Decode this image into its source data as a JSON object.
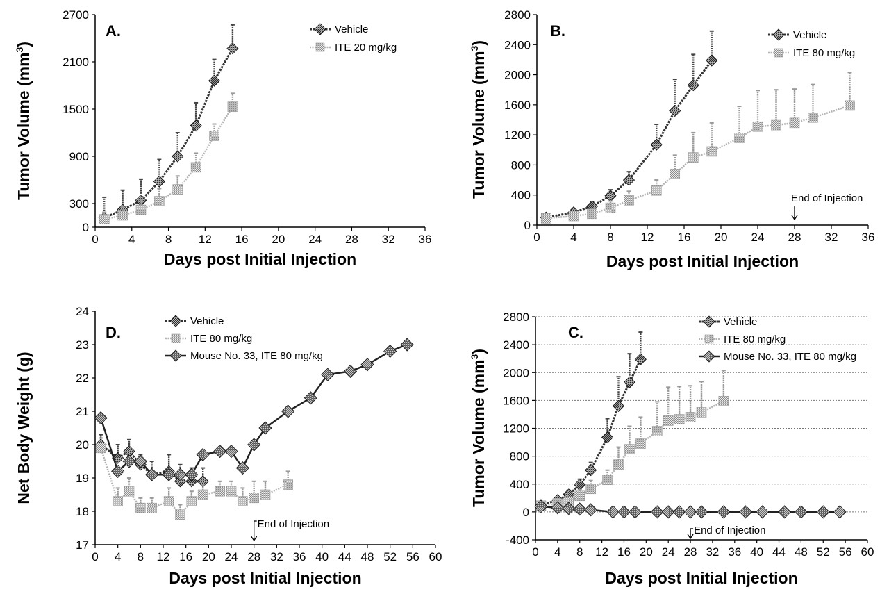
{
  "colors": {
    "vehicle": "#333333",
    "ite": "#b4b4b4",
    "mouse33": "#222222",
    "grid": "#777777"
  },
  "chart_data": [
    {
      "panel": "A.",
      "type": "line",
      "xlabel": "Days post Initial Injection",
      "ylabel": "Tumor Volume (mm",
      "ylabel_sup": "3",
      "ylabel_close": ")",
      "xlim": [
        0,
        36
      ],
      "ylim": [
        0,
        2700
      ],
      "xticks": [
        0,
        4,
        8,
        12,
        16,
        20,
        24,
        28,
        32,
        36
      ],
      "yticks": [
        0,
        300,
        900,
        1500,
        2100,
        2700
      ],
      "legend_position": "top-right",
      "grid": false,
      "series": [
        {
          "name": "Vehicle",
          "style": "vehicle",
          "x": [
            1,
            3,
            5,
            7,
            9,
            11,
            13,
            15
          ],
          "y": [
            120,
            220,
            340,
            580,
            900,
            1290,
            1860,
            2270
          ],
          "err": [
            260,
            250,
            270,
            280,
            300,
            290,
            270,
            300
          ]
        },
        {
          "name": "ITE 20 mg/kg",
          "style": "ite",
          "x": [
            1,
            3,
            5,
            7,
            9,
            11,
            13,
            15
          ],
          "y": [
            100,
            150,
            220,
            330,
            480,
            760,
            1160,
            1530
          ],
          "err": [
            90,
            110,
            130,
            160,
            170,
            180,
            150,
            170
          ]
        }
      ],
      "annotations": []
    },
    {
      "panel": "B.",
      "type": "line",
      "xlabel": "Days post Initial Injection",
      "ylabel": "Tumor Volume (mm",
      "ylabel_sup": "3",
      "ylabel_close": ")",
      "xlim": [
        0,
        36
      ],
      "ylim": [
        0,
        2800
      ],
      "xticks": [
        0,
        4,
        8,
        12,
        16,
        20,
        24,
        28,
        32,
        36
      ],
      "yticks": [
        0,
        400,
        800,
        1200,
        1600,
        2000,
        2400,
        2800
      ],
      "legend_position": "top-right",
      "grid": false,
      "series": [
        {
          "name": "Vehicle",
          "style": "vehicle",
          "x": [
            1,
            4,
            6,
            8,
            10,
            13,
            15,
            17,
            19
          ],
          "y": [
            100,
            170,
            250,
            390,
            600,
            1070,
            1520,
            1860,
            2190
          ],
          "err": [
            40,
            40,
            60,
            80,
            110,
            270,
            420,
            410,
            390
          ]
        },
        {
          "name": "ITE 80 mg/kg",
          "style": "ite",
          "x": [
            1,
            4,
            6,
            8,
            10,
            13,
            15,
            17,
            19,
            22,
            24,
            26,
            28,
            30,
            34
          ],
          "y": [
            90,
            120,
            150,
            230,
            330,
            460,
            680,
            900,
            980,
            1160,
            1310,
            1330,
            1360,
            1430,
            1590
          ],
          "err": [
            40,
            40,
            60,
            90,
            120,
            140,
            250,
            330,
            380,
            420,
            480,
            470,
            450,
            440,
            440
          ]
        }
      ],
      "annotations": [
        {
          "text": "End of Injection",
          "x": 28
        }
      ]
    },
    {
      "panel": "D.",
      "type": "line",
      "xlabel": "Days post Initial Injection",
      "ylabel": "Net Body Weight (g)",
      "xlim": [
        0,
        60
      ],
      "ylim": [
        17,
        24
      ],
      "xticks": [
        0,
        4,
        8,
        12,
        16,
        20,
        24,
        28,
        32,
        36,
        40,
        44,
        48,
        52,
        56,
        60
      ],
      "yticks": [
        17,
        18,
        19,
        20,
        21,
        22,
        23,
        24
      ],
      "legend_position": "top-left",
      "grid": false,
      "series": [
        {
          "name": "Vehicle",
          "style": "vehicle",
          "x": [
            1,
            4,
            6,
            8,
            10,
            13,
            15,
            17,
            19
          ],
          "y": [
            20.0,
            19.6,
            19.8,
            19.4,
            19.1,
            19.2,
            18.9,
            18.9,
            18.9
          ],
          "err": [
            0.3,
            0.4,
            0.35,
            0.3,
            0.4,
            0.5,
            0.5,
            0.4,
            0.4
          ]
        },
        {
          "name": "ITE 80 mg/kg",
          "style": "ite",
          "x": [
            1,
            4,
            6,
            8,
            10,
            13,
            15,
            17,
            19,
            22,
            24,
            26,
            28,
            30,
            34
          ],
          "y": [
            19.9,
            18.3,
            18.6,
            18.1,
            18.1,
            18.3,
            17.9,
            18.3,
            18.5,
            18.6,
            18.6,
            18.3,
            18.4,
            18.5,
            18.8
          ],
          "err": [
            0.3,
            0.4,
            0.4,
            0.3,
            0.3,
            0.4,
            0.3,
            0.3,
            0.3,
            0.3,
            0.3,
            0.4,
            0.5,
            0.4,
            0.4
          ]
        },
        {
          "name": "Mouse No. 33, ITE 80 mg/kg",
          "style": "mouse33",
          "x": [
            1,
            4,
            6,
            8,
            10,
            13,
            15,
            17,
            19,
            22,
            24,
            26,
            28,
            30,
            34,
            38,
            41,
            45,
            48,
            52,
            55
          ],
          "y": [
            20.8,
            19.2,
            19.5,
            19.5,
            19.1,
            19.1,
            19.1,
            19.1,
            19.7,
            19.8,
            19.8,
            19.3,
            20.0,
            20.5,
            21.0,
            21.4,
            22.1,
            22.2,
            22.4,
            22.8,
            23.0
          ],
          "err": []
        }
      ],
      "annotations": [
        {
          "text": "End of Injection",
          "x": 28
        }
      ]
    },
    {
      "panel": "C.",
      "type": "line",
      "xlabel": "Days post Initial Injection",
      "ylabel": "Tumor Volume (mm",
      "ylabel_sup": "3",
      "ylabel_close": ")",
      "xlim": [
        0,
        60
      ],
      "ylim": [
        -400,
        2800
      ],
      "xticks": [
        0,
        4,
        8,
        12,
        16,
        20,
        24,
        28,
        32,
        36,
        40,
        44,
        48,
        52,
        56,
        60
      ],
      "yticks": [
        -400,
        0,
        400,
        800,
        1200,
        1600,
        2000,
        2400,
        2800
      ],
      "legend_position": "top-right",
      "grid": true,
      "series": [
        {
          "name": "Vehicle",
          "style": "vehicle",
          "x": [
            1,
            4,
            6,
            8,
            10,
            13,
            15,
            17,
            19
          ],
          "y": [
            100,
            170,
            250,
            390,
            600,
            1070,
            1520,
            1860,
            2190
          ],
          "err": [
            40,
            40,
            60,
            80,
            110,
            270,
            420,
            410,
            390
          ]
        },
        {
          "name": "ITE 80 mg/kg",
          "style": "ite",
          "x": [
            1,
            4,
            6,
            8,
            10,
            13,
            15,
            17,
            19,
            22,
            24,
            26,
            28,
            30,
            34
          ],
          "y": [
            90,
            120,
            150,
            230,
            330,
            460,
            680,
            900,
            980,
            1160,
            1310,
            1330,
            1360,
            1430,
            1590
          ],
          "err": [
            40,
            40,
            60,
            90,
            120,
            140,
            250,
            330,
            380,
            420,
            480,
            470,
            450,
            440,
            440
          ]
        },
        {
          "name": "Mouse No. 33, ITE 80 mg/kg",
          "style": "mouse33",
          "x": [
            1,
            4,
            6,
            8,
            10,
            14,
            16,
            18,
            22,
            24,
            26,
            28,
            30,
            34,
            38,
            41,
            45,
            48,
            52,
            55
          ],
          "y": [
            80,
            60,
            50,
            40,
            30,
            0,
            0,
            0,
            0,
            0,
            0,
            0,
            0,
            0,
            0,
            0,
            0,
            0,
            0,
            0
          ],
          "err": []
        }
      ],
      "annotations": [
        {
          "text": "End of Injection",
          "x": 28
        }
      ]
    }
  ]
}
